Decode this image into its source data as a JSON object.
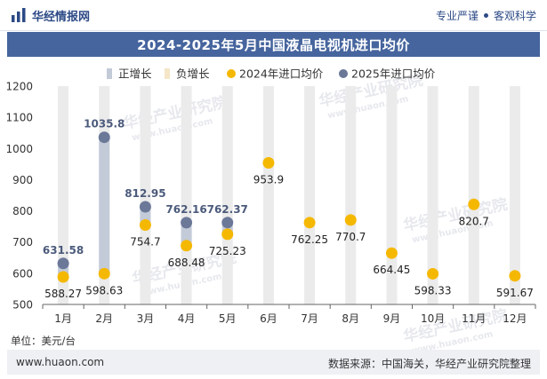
{
  "header": {
    "brand_name": "华经情报网",
    "tagline_left": "专业严谨",
    "tagline_right": "客观科学"
  },
  "title": "2024-2025年5月中国液晶电视机进口均价",
  "legend": {
    "items": [
      {
        "label": "正增长",
        "color": "#c3cad8",
        "marker": "bar"
      },
      {
        "label": "负增长",
        "color": "#f5e6c8",
        "marker": "bar"
      },
      {
        "label": "2024年进口均价",
        "color": "#f5b800",
        "marker": "dot"
      },
      {
        "label": "2025年进口均价",
        "color": "#6b7898",
        "marker": "dot"
      }
    ]
  },
  "unit_label": "单位：美元/台",
  "footer": {
    "url": "www.huaon.com",
    "source": "数据来源：中国海关，华经产业研究院整理"
  },
  "watermark": {
    "name": "华经产业研究院",
    "url": "www.huaon.com"
  },
  "colors": {
    "accent": "#46659e",
    "bar_positive": "#c3cad8",
    "bar_negative": "#f5e6c8",
    "bar_track": "#ebebeb",
    "dot_2024": "#f5b800",
    "dot_2025": "#6b7898",
    "label_2025": "#4c5b7c"
  },
  "chart_data": {
    "type": "line",
    "categories": [
      "1月",
      "2月",
      "3月",
      "4月",
      "5月",
      "6月",
      "7月",
      "8月",
      "9月",
      "10月",
      "11月",
      "12月"
    ],
    "series": [
      {
        "name": "2024年进口均价",
        "values": [
          588.27,
          598.63,
          754.7,
          688.48,
          725.23,
          953.9,
          762.25,
          770.7,
          664.45,
          598.33,
          820.7,
          591.67
        ]
      },
      {
        "name": "2025年进口均价",
        "values": [
          631.58,
          1035.8,
          812.95,
          762.16,
          762.37,
          null,
          null,
          null,
          null,
          null,
          null,
          null
        ]
      }
    ],
    "y_ticks": [
      500,
      600,
      700,
      800,
      900,
      1000,
      1100,
      1200
    ],
    "ylim": [
      500,
      1200
    ],
    "grid": false,
    "legend_position": "top"
  }
}
